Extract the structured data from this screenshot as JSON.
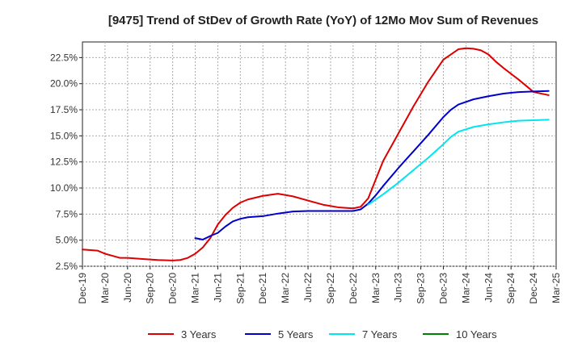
{
  "chart_data": {
    "type": "line",
    "title": "[9475]  Trend of StDev of Growth Rate (YoY) of 12Mo Mov Sum of Revenues",
    "xlabel": "",
    "ylabel": "",
    "x_ticks": [
      "Dec-19",
      "Mar-20",
      "Jun-20",
      "Sep-20",
      "Dec-20",
      "Mar-21",
      "Jun-21",
      "Sep-21",
      "Dec-21",
      "Mar-22",
      "Jun-22",
      "Sep-22",
      "Dec-22",
      "Mar-23",
      "Jun-23",
      "Sep-23",
      "Dec-23",
      "Mar-24",
      "Jun-24",
      "Sep-24",
      "Dec-24",
      "Mar-25"
    ],
    "y_ticks": [
      "2.5%",
      "5.0%",
      "7.5%",
      "10.0%",
      "12.5%",
      "15.0%",
      "17.5%",
      "20.0%",
      "22.5%"
    ],
    "y_tick_values": [
      2.5,
      5.0,
      7.5,
      10.0,
      12.5,
      15.0,
      17.5,
      20.0,
      22.5
    ],
    "ylim": [
      2.5,
      24.0
    ],
    "xlim": [
      0,
      63
    ],
    "grid": true,
    "legend_position": "bottom",
    "x_unit": "months since Dec-19",
    "series": [
      {
        "name": "3 Years",
        "color": "#dd0000",
        "x": [
          0,
          2,
          3,
          4,
          5,
          6,
          8,
          10,
          12,
          13,
          14,
          15,
          16,
          17,
          18,
          19,
          20,
          21,
          22,
          24,
          26,
          28,
          30,
          32,
          34,
          36,
          37,
          38,
          39,
          40,
          42,
          44,
          46,
          48,
          50,
          51,
          52,
          53,
          54,
          55,
          56,
          58,
          60,
          62
        ],
        "y": [
          4.1,
          4.0,
          3.7,
          3.5,
          3.3,
          3.3,
          3.2,
          3.1,
          3.05,
          3.1,
          3.3,
          3.7,
          4.3,
          5.2,
          6.5,
          7.4,
          8.1,
          8.6,
          8.9,
          9.25,
          9.45,
          9.2,
          8.8,
          8.4,
          8.15,
          8.05,
          8.2,
          9.0,
          10.8,
          12.6,
          15.2,
          17.8,
          20.2,
          22.3,
          23.3,
          23.4,
          23.35,
          23.2,
          22.8,
          22.1,
          21.5,
          20.4,
          19.2,
          18.9
        ]
      },
      {
        "name": "5 Years",
        "color": "#0000cc",
        "x": [
          15,
          16,
          17,
          18,
          19,
          20,
          21,
          22,
          24,
          26,
          28,
          30,
          32,
          34,
          36,
          37,
          38,
          39,
          40,
          42,
          44,
          46,
          48,
          49,
          50,
          52,
          54,
          56,
          58,
          60,
          62
        ],
        "y": [
          5.2,
          5.05,
          5.4,
          5.7,
          6.3,
          6.8,
          7.05,
          7.2,
          7.3,
          7.55,
          7.75,
          7.8,
          7.8,
          7.8,
          7.8,
          7.95,
          8.5,
          9.3,
          10.2,
          11.9,
          13.5,
          15.1,
          16.8,
          17.5,
          18.0,
          18.5,
          18.8,
          19.05,
          19.2,
          19.25,
          19.3
        ]
      },
      {
        "name": "7 Years",
        "color": "#00e5ee",
        "x": [
          38,
          40,
          42,
          44,
          46,
          48,
          49,
          50,
          52,
          54,
          56,
          58,
          60,
          62
        ],
        "y": [
          8.4,
          9.4,
          10.5,
          11.7,
          12.9,
          14.2,
          14.9,
          15.4,
          15.85,
          16.1,
          16.3,
          16.45,
          16.5,
          16.55
        ]
      },
      {
        "name": "10 Years",
        "color": "#008000",
        "x": [],
        "y": []
      }
    ]
  }
}
